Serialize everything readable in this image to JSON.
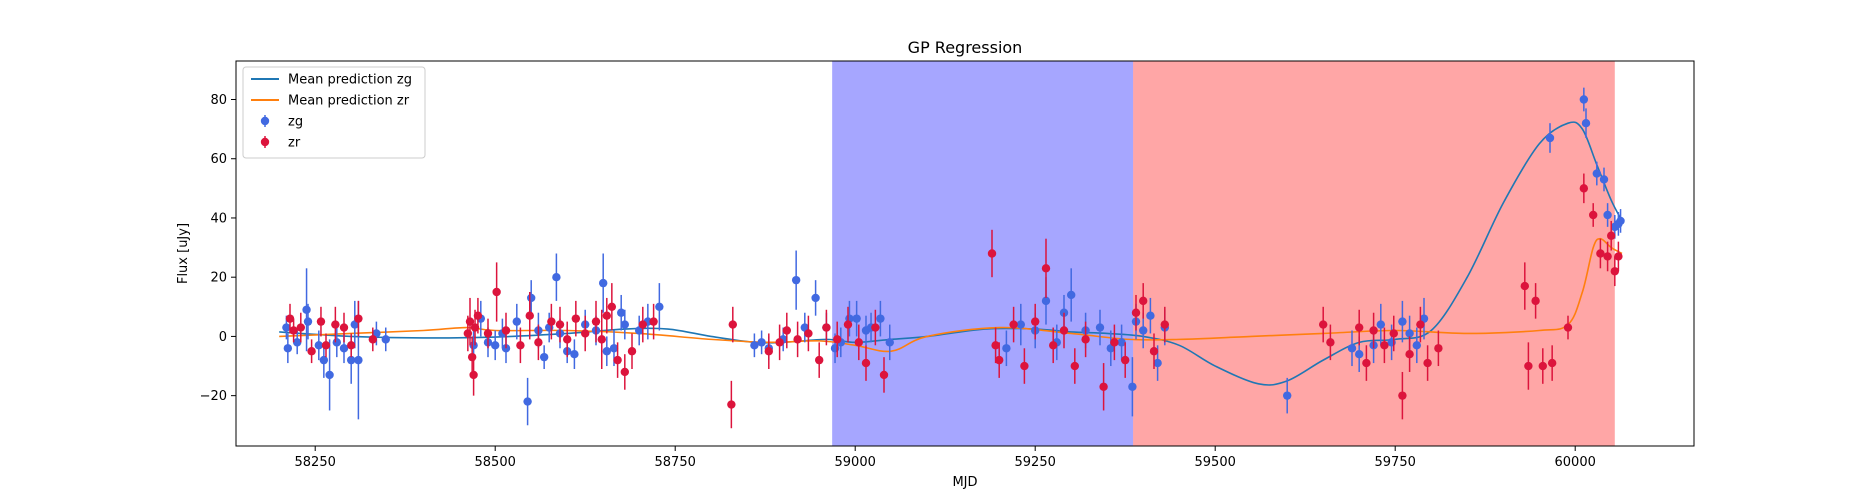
{
  "chart_data": {
    "type": "scatter",
    "title": "GP Regression",
    "xlabel": "MJD",
    "ylabel": "Flux [uJy]",
    "xlim": [
      58140,
      60165
    ],
    "ylim": [
      -37,
      93
    ],
    "xticks": [
      58250,
      58500,
      58750,
      59000,
      59250,
      59500,
      59750,
      60000
    ],
    "yticks": [
      -20,
      0,
      20,
      40,
      60,
      80
    ],
    "grid": false,
    "legend": {
      "placement": "top-left",
      "entries": [
        {
          "label": "Mean prediction zg",
          "kind": "line",
          "color": "#1f77b4"
        },
        {
          "label": "Mean prediction zr",
          "kind": "line",
          "color": "#ff7f0e"
        },
        {
          "label": "zg",
          "kind": "errorbar",
          "color": "#4169e1"
        },
        {
          "label": "zr",
          "kind": "errorbar",
          "color": "#dc143c"
        }
      ]
    },
    "shaded_regions": [
      {
        "x0": 58968,
        "x1": 59386,
        "color": "#0000ff",
        "opacity": 0.35
      },
      {
        "x0": 59386,
        "x1": 60055,
        "color": "#ff0000",
        "opacity": 0.35
      }
    ],
    "series": [
      {
        "name": "Mean prediction zg",
        "kind": "line",
        "color": "#1f77b4",
        "points": [
          [
            58200,
            1.5
          ],
          [
            58300,
            0
          ],
          [
            58400,
            -0.5
          ],
          [
            58500,
            -0.2
          ],
          [
            58600,
            1
          ],
          [
            58680,
            2.5
          ],
          [
            58740,
            2.5
          ],
          [
            58800,
            0
          ],
          [
            58860,
            -2
          ],
          [
            58900,
            -2
          ],
          [
            58960,
            -1
          ],
          [
            59000,
            -2
          ],
          [
            59050,
            -1
          ],
          [
            59100,
            0
          ],
          [
            59180,
            2.5
          ],
          [
            59250,
            2.5
          ],
          [
            59300,
            1.5
          ],
          [
            59350,
            1
          ],
          [
            59400,
            0
          ],
          [
            59450,
            -3
          ],
          [
            59500,
            -10
          ],
          [
            59560,
            -16
          ],
          [
            59600,
            -15
          ],
          [
            59650,
            -8
          ],
          [
            59700,
            -2
          ],
          [
            59750,
            -1
          ],
          [
            59800,
            2
          ],
          [
            59850,
            20
          ],
          [
            59900,
            45
          ],
          [
            59950,
            65
          ],
          [
            59990,
            72
          ],
          [
            60010,
            70
          ],
          [
            60030,
            58
          ],
          [
            60050,
            46
          ],
          [
            60065,
            39
          ]
        ]
      },
      {
        "name": "Mean prediction zr",
        "kind": "line",
        "color": "#ff7f0e",
        "points": [
          [
            58200,
            0
          ],
          [
            58300,
            1
          ],
          [
            58400,
            2
          ],
          [
            58460,
            3
          ],
          [
            58500,
            2
          ],
          [
            58600,
            2
          ],
          [
            58700,
            1
          ],
          [
            58800,
            -1
          ],
          [
            58880,
            -2
          ],
          [
            58950,
            -1.5
          ],
          [
            59000,
            -3
          ],
          [
            59050,
            -5
          ],
          [
            59100,
            0
          ],
          [
            59200,
            3
          ],
          [
            59300,
            1
          ],
          [
            59380,
            -1
          ],
          [
            59450,
            -1
          ],
          [
            59550,
            0
          ],
          [
            59650,
            1
          ],
          [
            59750,
            2
          ],
          [
            59850,
            1
          ],
          [
            59950,
            2
          ],
          [
            59990,
            4
          ],
          [
            60010,
            15
          ],
          [
            60025,
            30
          ],
          [
            60035,
            33
          ],
          [
            60050,
            30
          ],
          [
            60065,
            28
          ]
        ]
      },
      {
        "name": "zg",
        "kind": "errorbar",
        "color": "#4169e1",
        "points": [
          [
            58210,
            3,
            4
          ],
          [
            58212,
            -4,
            5
          ],
          [
            58225,
            -2,
            4
          ],
          [
            58238,
            9,
            14
          ],
          [
            58240,
            5,
            6
          ],
          [
            58255,
            -3,
            5
          ],
          [
            58262,
            -8,
            6
          ],
          [
            58270,
            -13,
            12
          ],
          [
            58280,
            -2,
            5
          ],
          [
            58290,
            -4,
            5
          ],
          [
            58300,
            -8,
            8
          ],
          [
            58305,
            4,
            8
          ],
          [
            58310,
            -8,
            20
          ],
          [
            58335,
            1,
            4
          ],
          [
            58348,
            -1,
            4
          ],
          [
            58470,
            -3,
            5
          ],
          [
            58480,
            6,
            6
          ],
          [
            58490,
            -2,
            5
          ],
          [
            58500,
            -3,
            5
          ],
          [
            58510,
            1,
            5
          ],
          [
            58515,
            -4,
            5
          ],
          [
            58530,
            5,
            6
          ],
          [
            58545,
            -22,
            8
          ],
          [
            58550,
            13,
            6
          ],
          [
            58560,
            2,
            6
          ],
          [
            58568,
            -7,
            4
          ],
          [
            58575,
            3,
            5
          ],
          [
            58585,
            20,
            8
          ],
          [
            58590,
            1,
            5
          ],
          [
            58600,
            -5,
            4
          ],
          [
            58610,
            -6,
            5
          ],
          [
            58625,
            4,
            5
          ],
          [
            58640,
            2,
            5
          ],
          [
            58650,
            18,
            10
          ],
          [
            58655,
            -5,
            5
          ],
          [
            58665,
            -4,
            6
          ],
          [
            58675,
            8,
            6
          ],
          [
            58680,
            4,
            5
          ],
          [
            58700,
            2,
            5
          ],
          [
            58712,
            5,
            6
          ],
          [
            58728,
            10,
            8
          ],
          [
            58860,
            -3,
            4
          ],
          [
            58870,
            -2,
            4
          ],
          [
            58880,
            -4,
            4
          ],
          [
            58900,
            -1,
            4
          ],
          [
            58918,
            19,
            10
          ],
          [
            58930,
            3,
            5
          ],
          [
            58945,
            13,
            6
          ],
          [
            58960,
            3,
            5
          ],
          [
            58972,
            -4,
            5
          ],
          [
            58980,
            -2,
            5
          ],
          [
            58992,
            6,
            6
          ],
          [
            59002,
            6,
            6
          ],
          [
            59015,
            2,
            5
          ],
          [
            59022,
            3,
            5
          ],
          [
            59035,
            6,
            6
          ],
          [
            59048,
            -2,
            6
          ],
          [
            59210,
            -4,
            6
          ],
          [
            59230,
            4,
            7
          ],
          [
            59250,
            2,
            6
          ],
          [
            59265,
            12,
            8
          ],
          [
            59280,
            -2,
            6
          ],
          [
            59290,
            8,
            6
          ],
          [
            59300,
            14,
            9
          ],
          [
            59320,
            2,
            6
          ],
          [
            59340,
            3,
            6
          ],
          [
            59355,
            -4,
            6
          ],
          [
            59370,
            -2,
            6
          ],
          [
            59385,
            -17,
            10
          ],
          [
            59390,
            5,
            6
          ],
          [
            59400,
            2,
            6
          ],
          [
            59410,
            7,
            6
          ],
          [
            59420,
            -9,
            6
          ],
          [
            59430,
            3,
            6
          ],
          [
            59600,
            -20,
            6
          ],
          [
            59690,
            -4,
            6
          ],
          [
            59700,
            -6,
            6
          ],
          [
            59720,
            -3,
            6
          ],
          [
            59730,
            4,
            7
          ],
          [
            59745,
            -2,
            6
          ],
          [
            59760,
            5,
            7
          ],
          [
            59770,
            1,
            6
          ],
          [
            59780,
            -3,
            6
          ],
          [
            59790,
            6,
            7
          ],
          [
            59965,
            67,
            5
          ],
          [
            60012,
            80,
            4
          ],
          [
            60015,
            72,
            5
          ],
          [
            60030,
            55,
            4
          ],
          [
            60040,
            53,
            4
          ],
          [
            60045,
            41,
            4
          ],
          [
            60055,
            37,
            4
          ],
          [
            60060,
            38,
            4
          ],
          [
            60063,
            39,
            4
          ]
        ]
      },
      {
        "name": "zr",
        "kind": "errorbar",
        "color": "#dc143c",
        "points": [
          [
            58215,
            6,
            5
          ],
          [
            58220,
            2,
            4
          ],
          [
            58230,
            3,
            5
          ],
          [
            58245,
            -5,
            4
          ],
          [
            58258,
            5,
            5
          ],
          [
            58265,
            -3,
            4
          ],
          [
            58278,
            4,
            6
          ],
          [
            58290,
            3,
            5
          ],
          [
            58300,
            -3,
            4
          ],
          [
            58310,
            6,
            6
          ],
          [
            58330,
            -1,
            4
          ],
          [
            58462,
            1,
            6
          ],
          [
            58465,
            5,
            8
          ],
          [
            58468,
            -7,
            7
          ],
          [
            58470,
            -13,
            7
          ],
          [
            58472,
            3,
            6
          ],
          [
            58476,
            7,
            6
          ],
          [
            58490,
            1,
            5
          ],
          [
            58502,
            15,
            10
          ],
          [
            58515,
            2,
            6
          ],
          [
            58535,
            -3,
            6
          ],
          [
            58548,
            7,
            8
          ],
          [
            58560,
            -2,
            6
          ],
          [
            58578,
            5,
            6
          ],
          [
            58590,
            4,
            6
          ],
          [
            58600,
            -1,
            6
          ],
          [
            58612,
            6,
            6
          ],
          [
            58625,
            1,
            6
          ],
          [
            58640,
            5,
            7
          ],
          [
            58648,
            -1,
            10
          ],
          [
            58655,
            7,
            6
          ],
          [
            58662,
            10,
            8
          ],
          [
            58670,
            -8,
            6
          ],
          [
            58680,
            -12,
            6
          ],
          [
            58690,
            -5,
            6
          ],
          [
            58705,
            4,
            6
          ],
          [
            58720,
            5,
            6
          ],
          [
            58828,
            -23,
            8
          ],
          [
            58830,
            4,
            6
          ],
          [
            58880,
            -5,
            6
          ],
          [
            58895,
            -2,
            6
          ],
          [
            58905,
            2,
            6
          ],
          [
            58920,
            -1,
            6
          ],
          [
            58935,
            1,
            6
          ],
          [
            58950,
            -8,
            6
          ],
          [
            58960,
            3,
            6
          ],
          [
            58975,
            -1,
            6
          ],
          [
            58990,
            4,
            6
          ],
          [
            59005,
            -2,
            6
          ],
          [
            59015,
            -9,
            6
          ],
          [
            59028,
            3,
            6
          ],
          [
            59040,
            -13,
            6
          ],
          [
            59190,
            28,
            8
          ],
          [
            59195,
            -3,
            6
          ],
          [
            59200,
            -8,
            6
          ],
          [
            59220,
            4,
            6
          ],
          [
            59235,
            -10,
            6
          ],
          [
            59250,
            5,
            6
          ],
          [
            59265,
            23,
            10
          ],
          [
            59275,
            -3,
            6
          ],
          [
            59290,
            2,
            6
          ],
          [
            59305,
            -10,
            6
          ],
          [
            59320,
            -1,
            6
          ],
          [
            59345,
            -17,
            8
          ],
          [
            59360,
            -2,
            6
          ],
          [
            59375,
            -8,
            6
          ],
          [
            59390,
            8,
            6
          ],
          [
            59400,
            12,
            6
          ],
          [
            59415,
            -5,
            6
          ],
          [
            59430,
            4,
            6
          ],
          [
            59650,
            4,
            6
          ],
          [
            59660,
            -2,
            6
          ],
          [
            59700,
            3,
            6
          ],
          [
            59710,
            -9,
            6
          ],
          [
            59720,
            2,
            6
          ],
          [
            59735,
            -3,
            6
          ],
          [
            59748,
            1,
            6
          ],
          [
            59760,
            -20,
            8
          ],
          [
            59770,
            -6,
            6
          ],
          [
            59785,
            4,
            6
          ],
          [
            59795,
            -9,
            6
          ],
          [
            59810,
            -4,
            6
          ],
          [
            59930,
            17,
            8
          ],
          [
            59935,
            -10,
            8
          ],
          [
            59945,
            12,
            6
          ],
          [
            59955,
            -10,
            6
          ],
          [
            59968,
            -9,
            6
          ],
          [
            59990,
            3,
            4
          ],
          [
            60012,
            50,
            5
          ],
          [
            60025,
            41,
            4
          ],
          [
            60035,
            28,
            5
          ],
          [
            60045,
            27,
            5
          ],
          [
            60050,
            34,
            5
          ],
          [
            60055,
            22,
            5
          ],
          [
            60060,
            27,
            5
          ]
        ]
      }
    ]
  }
}
